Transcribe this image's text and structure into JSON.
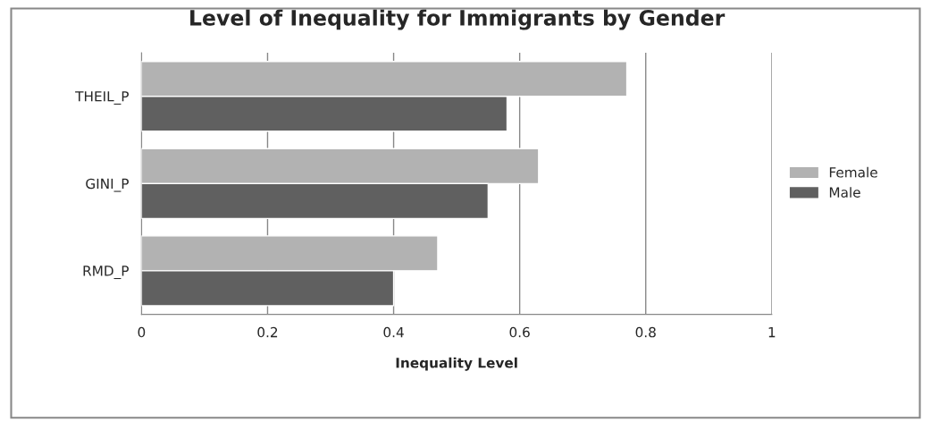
{
  "chart_data": {
    "type": "bar",
    "orientation": "horizontal",
    "title": "Level of Inequality for Immigrants by Gender",
    "xlabel": "Inequality Level",
    "categories": [
      "THEIL_P",
      "GINI_P",
      "RMD_P"
    ],
    "series": [
      {
        "name": "Female",
        "color": "#b2b2b2",
        "values": [
          0.77,
          0.63,
          0.47
        ]
      },
      {
        "name": "Male",
        "color": "#606060",
        "values": [
          0.58,
          0.55,
          0.4
        ]
      }
    ],
    "xlim": [
      0,
      1
    ],
    "xticks": [
      0,
      0.2,
      0.4,
      0.6,
      0.8,
      1
    ],
    "grid": "x",
    "legend": "right"
  }
}
